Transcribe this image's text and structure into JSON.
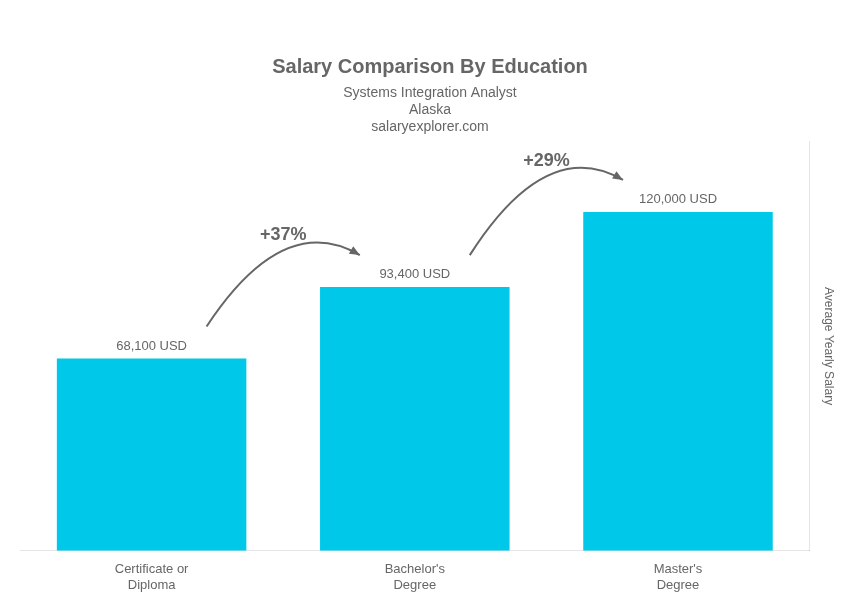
{
  "chart_data": {
    "type": "bar",
    "title": "Salary Comparison By Education",
    "subtitle": "Systems Integration Analyst",
    "ylabel": "Average Yearly Salary",
    "categories": [
      "Certificate or\nDiploma",
      "Bachelor's\nDegree",
      "Master's\nDegree"
    ],
    "values": [
      68100,
      93400,
      120000
    ],
    "value_labels": [
      "68,100 USD",
      "93,400 USD",
      "120,000 USD"
    ],
    "data_labels": true,
    "color": "#00c8e8",
    "ylim": [
      0,
      145000
    ],
    "grid": false,
    "tick_labels": "x",
    "annotations": [
      {
        "text": "+37%",
        "from": "Certificate or\nDiploma",
        "to": "Bachelor's\nDegree"
      },
      {
        "text": "+29%",
        "from": "Bachelor's\nDegree",
        "to": "Master's\nDegree"
      },
      {
        "text": "Alaska"
      },
      {
        "text": "salaryexplorer.com"
      }
    ]
  }
}
